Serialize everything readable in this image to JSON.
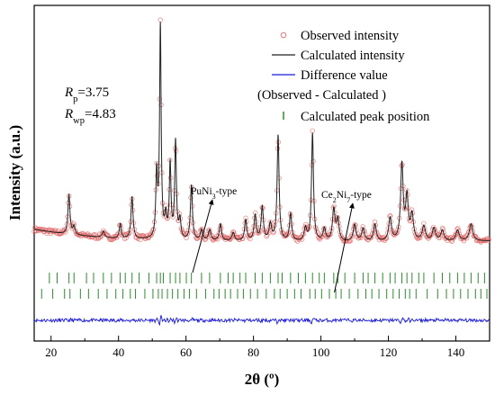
{
  "chart_data": {
    "type": "line",
    "title": "",
    "xlabel": "2θ (º)",
    "ylabel": "Intensity (a.u.)",
    "xlim": [
      15,
      150
    ],
    "x_ticks": [
      20,
      40,
      60,
      80,
      100,
      120,
      140
    ],
    "y_ticks_shown": false,
    "grid": false,
    "legend_position": "top-right",
    "legend": [
      {
        "label": "Observed intensity",
        "marker": "open-circle",
        "color": "#e06666"
      },
      {
        "label": "Calculated intensity",
        "marker": "line",
        "color": "#222222"
      },
      {
        "label": "Difference value",
        "marker": "line",
        "color": "#1a1adc"
      },
      {
        "label": "(Observed - Calculated )",
        "marker": "none",
        "color": "#000000"
      },
      {
        "label": "Calculated peak position",
        "marker": "tick",
        "color": "#2e8b2e"
      }
    ],
    "fit_stats": {
      "rp_symbol": "R",
      "rp_sub": "p",
      "rp_value": "=3.75",
      "rwp_symbol": "R",
      "rwp_sub": "wp",
      "rwp_value": "=4.83"
    },
    "annotations": [
      {
        "pre": "PuNi",
        "sub": "3",
        "post": "-type",
        "points_to_row": 1,
        "arrow_x": 61.5
      },
      {
        "pre": "Ce",
        "sub": "2",
        "post": "Ni",
        "sub2": "7",
        "post2": "-type",
        "points_to_row": 2,
        "arrow_x": 104
      }
    ],
    "baseline": 0.23,
    "baseline_slope": [
      [
        15,
        0.26
      ],
      [
        25,
        0.235
      ],
      [
        40,
        0.215
      ],
      [
        60,
        0.205
      ],
      [
        90,
        0.2
      ],
      [
        120,
        0.2
      ],
      [
        150,
        0.205
      ]
    ],
    "peaks": [
      {
        "x": 25.3,
        "h": 0.19,
        "w": 0.35
      },
      {
        "x": 26.8,
        "h": 0.04,
        "w": 0.35
      },
      {
        "x": 35.5,
        "h": 0.03,
        "w": 0.4
      },
      {
        "x": 40.5,
        "h": 0.07,
        "w": 0.35
      },
      {
        "x": 44.0,
        "h": 0.2,
        "w": 0.35
      },
      {
        "x": 51.3,
        "h": 0.3,
        "w": 0.3
      },
      {
        "x": 52.4,
        "h": 1.0,
        "w": 0.28
      },
      {
        "x": 54.0,
        "h": 0.1,
        "w": 0.35
      },
      {
        "x": 55.3,
        "h": 0.35,
        "w": 0.3
      },
      {
        "x": 56.9,
        "h": 0.46,
        "w": 0.3
      },
      {
        "x": 58.2,
        "h": 0.09,
        "w": 0.35
      },
      {
        "x": 61.6,
        "h": 0.26,
        "w": 0.35
      },
      {
        "x": 64.6,
        "h": 0.05,
        "w": 0.4
      },
      {
        "x": 67.0,
        "h": 0.05,
        "w": 0.45
      },
      {
        "x": 70.2,
        "h": 0.08,
        "w": 0.4
      },
      {
        "x": 74.0,
        "h": 0.04,
        "w": 0.45
      },
      {
        "x": 77.7,
        "h": 0.1,
        "w": 0.4
      },
      {
        "x": 80.5,
        "h": 0.12,
        "w": 0.4
      },
      {
        "x": 82.6,
        "h": 0.16,
        "w": 0.4
      },
      {
        "x": 85.0,
        "h": 0.08,
        "w": 0.45
      },
      {
        "x": 87.3,
        "h": 0.5,
        "w": 0.35
      },
      {
        "x": 91.0,
        "h": 0.13,
        "w": 0.4
      },
      {
        "x": 95.4,
        "h": 0.06,
        "w": 0.45
      },
      {
        "x": 97.5,
        "h": 0.51,
        "w": 0.35
      },
      {
        "x": 101.0,
        "h": 0.06,
        "w": 0.45
      },
      {
        "x": 103.8,
        "h": 0.15,
        "w": 0.45
      },
      {
        "x": 105.0,
        "h": 0.1,
        "w": 0.45
      },
      {
        "x": 110.0,
        "h": 0.08,
        "w": 0.5
      },
      {
        "x": 112.5,
        "h": 0.06,
        "w": 0.5
      },
      {
        "x": 116.0,
        "h": 0.08,
        "w": 0.5
      },
      {
        "x": 120.5,
        "h": 0.11,
        "w": 0.5
      },
      {
        "x": 124.0,
        "h": 0.36,
        "w": 0.45
      },
      {
        "x": 125.5,
        "h": 0.2,
        "w": 0.45
      },
      {
        "x": 127.0,
        "h": 0.12,
        "w": 0.5
      },
      {
        "x": 130.5,
        "h": 0.07,
        "w": 0.55
      },
      {
        "x": 133.5,
        "h": 0.06,
        "w": 0.55
      },
      {
        "x": 136.0,
        "h": 0.05,
        "w": 0.55
      },
      {
        "x": 140.5,
        "h": 0.05,
        "w": 0.6
      },
      {
        "x": 144.5,
        "h": 0.08,
        "w": 0.6
      }
    ],
    "peak_positions_row1": [
      19.5,
      21.8,
      25.3,
      26.8,
      30.5,
      32.6,
      35.5,
      37.9,
      40.5,
      42.0,
      44.0,
      46.1,
      49.0,
      51.3,
      52.4,
      53.3,
      55.3,
      56.9,
      58.2,
      60.1,
      61.6,
      64.6,
      67.0,
      70.2,
      72.5,
      74.0,
      76.0,
      77.7,
      80.5,
      82.6,
      85.0,
      87.3,
      88.5,
      91.0,
      93.3,
      95.4,
      97.5,
      99.5,
      101.0,
      103.8,
      105.0,
      107.1,
      110.0,
      112.5,
      114.0,
      116.0,
      118.3,
      120.5,
      122.0,
      124.0,
      125.5,
      127.0,
      129.0,
      130.5,
      133.5,
      136.0,
      138.2,
      140.5,
      142.5,
      144.5,
      146.6,
      148.5
    ],
    "peak_positions_row2": [
      17.2,
      20.5,
      24.0,
      25.6,
      28.7,
      31.1,
      34.0,
      36.6,
      39.2,
      41.3,
      43.5,
      45.0,
      47.8,
      50.2,
      51.8,
      52.9,
      54.5,
      56.0,
      57.6,
      59.4,
      61.0,
      63.1,
      65.8,
      68.3,
      69.8,
      71.6,
      73.2,
      75.3,
      77.0,
      79.1,
      81.2,
      83.8,
      86.2,
      87.9,
      90.0,
      92.2,
      94.1,
      96.7,
      98.3,
      100.2,
      102.5,
      104.4,
      106.0,
      108.4,
      111.0,
      113.3,
      115.1,
      117.2,
      119.5,
      121.4,
      123.2,
      125.0,
      126.3,
      128.2,
      131.5,
      134.6,
      137.2,
      139.3,
      141.4,
      143.6,
      145.8,
      147.4,
      149.2
    ]
  }
}
